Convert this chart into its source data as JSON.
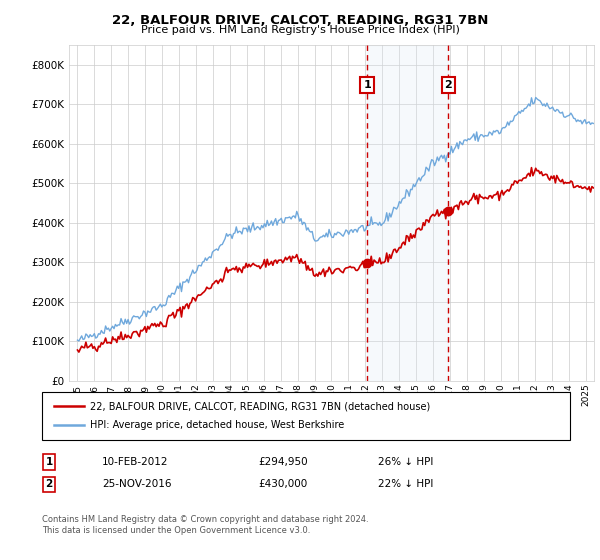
{
  "title": "22, BALFOUR DRIVE, CALCOT, READING, RG31 7BN",
  "subtitle": "Price paid vs. HM Land Registry's House Price Index (HPI)",
  "legend_line1": "22, BALFOUR DRIVE, CALCOT, READING, RG31 7BN (detached house)",
  "legend_line2": "HPI: Average price, detached house, West Berkshire",
  "annotation1_label": "1",
  "annotation1_date": "10-FEB-2012",
  "annotation1_price": "£294,950",
  "annotation1_hpi": "26% ↓ HPI",
  "annotation1_year": 2012.1,
  "annotation2_label": "2",
  "annotation2_date": "25-NOV-2016",
  "annotation2_price": "£430,000",
  "annotation2_hpi": "22% ↓ HPI",
  "annotation2_year": 2016.9,
  "footer": "Contains HM Land Registry data © Crown copyright and database right 2024.\nThis data is licensed under the Open Government Licence v3.0.",
  "hpi_color": "#6fa8dc",
  "price_color": "#cc0000",
  "annotation_box_color": "#cc0000",
  "shade_color": "#dce8f5",
  "ylim": [
    0,
    850000
  ],
  "yticks": [
    0,
    100000,
    200000,
    300000,
    400000,
    500000,
    600000,
    700000,
    800000
  ],
  "xlim_start": 1994.5,
  "xlim_end": 2025.5,
  "purchase1_price": 294950,
  "purchase1_year": 2012.1,
  "purchase2_price": 430000,
  "purchase2_year": 2016.9
}
